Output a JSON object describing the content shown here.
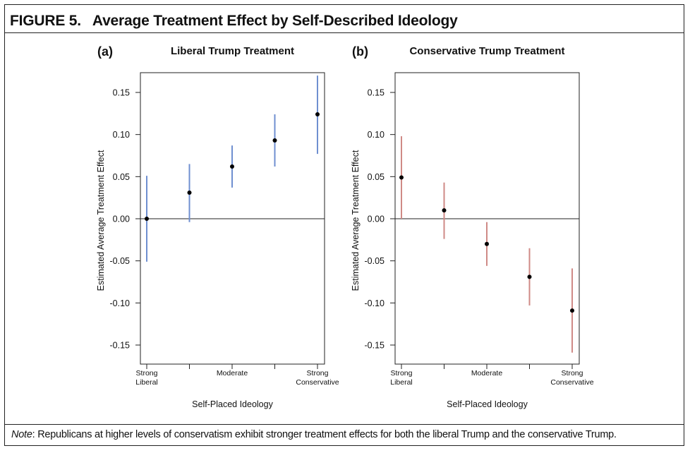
{
  "figure": {
    "label": "FIGURE 5.",
    "title": "Average Treatment Effect by Self-Described Ideology"
  },
  "note": {
    "label": "Note",
    "text": ": Republicans at higher levels of conservatism exhibit stronger treatment effects for both the liberal Trump and the conservative Trump."
  },
  "chart_data": [
    {
      "type": "scatter",
      "panel": "(a)",
      "title": "Liberal Trump Treatment",
      "xlabel": "Self-Placed Ideology",
      "ylabel": "Estimated Average Treatment Effect",
      "ylim": [
        -0.175,
        0.175
      ],
      "yticks": [
        "0.15",
        "0.10",
        "0.05",
        "0.00",
        "-0.05",
        "-0.10",
        "-0.15"
      ],
      "ytick_values": [
        0.15,
        0.1,
        0.05,
        0.0,
        -0.05,
        -0.1,
        -0.15
      ],
      "xticks": [
        {
          "lines": [
            "Strong",
            "Liberal"
          ]
        },
        {
          "lines": []
        },
        {
          "lines": [
            "Moderate"
          ]
        },
        {
          "lines": []
        },
        {
          "lines": [
            "Strong",
            "Conservative"
          ]
        }
      ],
      "color": "#6f8fd0",
      "points": [
        {
          "x": 1,
          "y": 0.0,
          "lo": -0.051,
          "hi": 0.051
        },
        {
          "x": 2,
          "y": 0.031,
          "lo": -0.004,
          "hi": 0.065
        },
        {
          "x": 3,
          "y": 0.062,
          "lo": 0.037,
          "hi": 0.087
        },
        {
          "x": 4,
          "y": 0.093,
          "lo": 0.062,
          "hi": 0.124
        },
        {
          "x": 5,
          "y": 0.124,
          "lo": 0.077,
          "hi": 0.17
        }
      ],
      "reference_line": 0,
      "grid": false
    },
    {
      "type": "scatter",
      "panel": "(b)",
      "title": "Conservative Trump Treatment",
      "xlabel": "Self-Placed Ideology",
      "ylabel": "Estimated Average Treatment Effect",
      "ylim": [
        -0.175,
        0.175
      ],
      "yticks": [
        "0.15",
        "0.10",
        "0.05",
        "0.00",
        "-0.05",
        "-0.10",
        "-0.15"
      ],
      "ytick_values": [
        0.15,
        0.1,
        0.05,
        0.0,
        -0.05,
        -0.1,
        -0.15
      ],
      "xticks": [
        {
          "lines": [
            "Strong",
            "Liberal"
          ]
        },
        {
          "lines": []
        },
        {
          "lines": [
            "Moderate"
          ]
        },
        {
          "lines": []
        },
        {
          "lines": [
            "Strong",
            "Conservative"
          ]
        }
      ],
      "color": "#cf8a86",
      "points": [
        {
          "x": 1,
          "y": 0.049,
          "lo": 0.0,
          "hi": 0.098
        },
        {
          "x": 2,
          "y": 0.01,
          "lo": -0.024,
          "hi": 0.043
        },
        {
          "x": 3,
          "y": -0.03,
          "lo": -0.056,
          "hi": -0.004
        },
        {
          "x": 4,
          "y": -0.069,
          "lo": -0.103,
          "hi": -0.035
        },
        {
          "x": 5,
          "y": -0.109,
          "lo": -0.159,
          "hi": -0.059
        }
      ],
      "reference_line": 0,
      "grid": false
    }
  ]
}
